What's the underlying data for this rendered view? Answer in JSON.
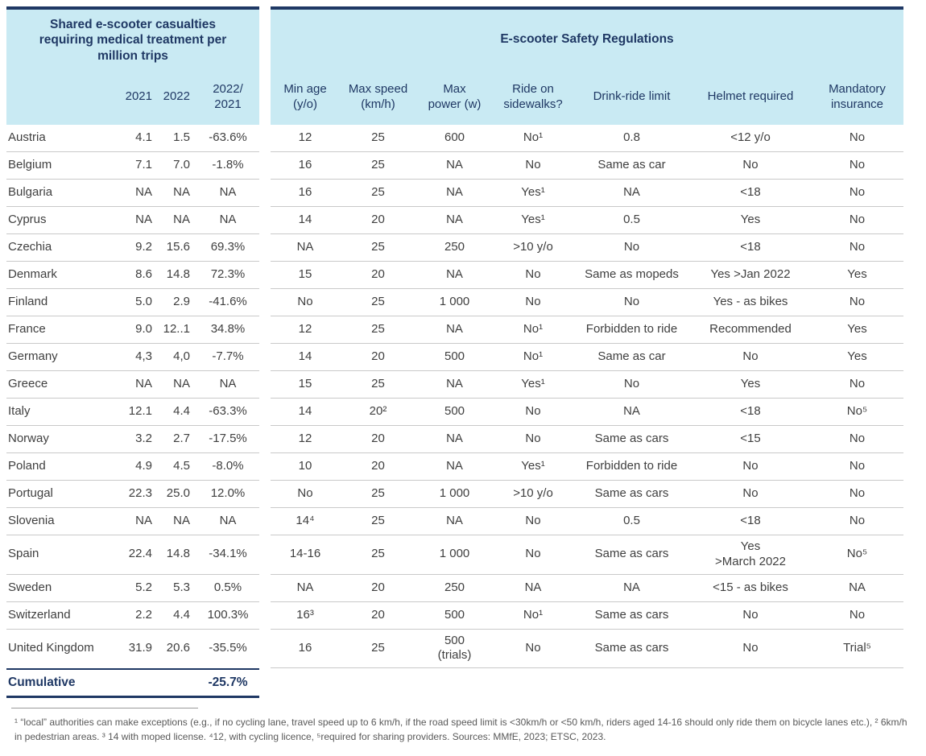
{
  "left_table": {
    "title": "Shared e-scooter casualties\nrequiring medical treatment per\nmillion trips",
    "columns": [
      "2021",
      "2022",
      "2022/\n2021"
    ],
    "cumulative": {
      "label": "Cumulative",
      "change": "-25.7%"
    }
  },
  "right_table": {
    "title": "E-scooter Safety Regulations",
    "columns": [
      "Min age\n(y/o)",
      "Max speed\n(km/h)",
      "Max\npower (w)",
      "Ride on\nsidewalks?",
      "Drink-ride limit",
      "Helmet required",
      "Mandatory\ninsurance"
    ]
  },
  "rows": [
    {
      "country": "Austria",
      "y2021": "4.1",
      "y2022": "1.5",
      "change": "-63.6%",
      "min_age": "12",
      "max_speed": "25",
      "max_power": "600",
      "sidewalks": "No¹",
      "drink_limit": "0.8",
      "helmet": "<12 y/o",
      "insurance": "No"
    },
    {
      "country": "Belgium",
      "y2021": "7.1",
      "y2022": "7.0",
      "change": "-1.8%",
      "min_age": "16",
      "max_speed": "25",
      "max_power": "NA",
      "sidewalks": "No",
      "drink_limit": "Same as car",
      "helmet": "No",
      "insurance": "No"
    },
    {
      "country": "Bulgaria",
      "y2021": "NA",
      "y2022": "NA",
      "change": "NA",
      "min_age": "16",
      "max_speed": "25",
      "max_power": "NA",
      "sidewalks": "Yes¹",
      "drink_limit": "NA",
      "helmet": "<18",
      "insurance": "No"
    },
    {
      "country": "Cyprus",
      "y2021": "NA",
      "y2022": "NA",
      "change": "NA",
      "min_age": "14",
      "max_speed": "20",
      "max_power": "NA",
      "sidewalks": "Yes¹",
      "drink_limit": "0.5",
      "helmet": "Yes",
      "insurance": "No"
    },
    {
      "country": "Czechia",
      "y2021": "9.2",
      "y2022": "15.6",
      "change": "69.3%",
      "min_age": "NA",
      "max_speed": "25",
      "max_power": "250",
      "sidewalks": ">10 y/o",
      "drink_limit": "No",
      "helmet": "<18",
      "insurance": "No"
    },
    {
      "country": "Denmark",
      "y2021": "8.6",
      "y2022": "14.8",
      "change": "72.3%",
      "min_age": "15",
      "max_speed": "20",
      "max_power": "NA",
      "sidewalks": "No",
      "drink_limit": "Same as mopeds",
      "helmet": "Yes  >Jan 2022",
      "insurance": "Yes"
    },
    {
      "country": "Finland",
      "y2021": "5.0",
      "y2022": "2.9",
      "change": "-41.6%",
      "min_age": "No",
      "max_speed": "25",
      "max_power": "1 000",
      "sidewalks": "No",
      "drink_limit": "No",
      "helmet": "Yes - as bikes",
      "insurance": "No"
    },
    {
      "country": "France",
      "y2021": "9.0",
      "y2022": "12..1",
      "change": "34.8%",
      "min_age": "12",
      "max_speed": "25",
      "max_power": "NA",
      "sidewalks": "No¹",
      "drink_limit": "Forbidden to ride",
      "helmet": "Recommended",
      "insurance": "Yes"
    },
    {
      "country": "Germany",
      "y2021": "4,3",
      "y2022": "4,0",
      "change": "-7.7%",
      "min_age": "14",
      "max_speed": "20",
      "max_power": "500",
      "sidewalks": "No¹",
      "drink_limit": "Same as car",
      "helmet": "No",
      "insurance": "Yes"
    },
    {
      "country": "Greece",
      "y2021": "NA",
      "y2022": "NA",
      "change": "NA",
      "min_age": "15",
      "max_speed": "25",
      "max_power": "NA",
      "sidewalks": "Yes¹",
      "drink_limit": "No",
      "helmet": "Yes",
      "insurance": "No"
    },
    {
      "country": "Italy",
      "y2021": "12.1",
      "y2022": "4.4",
      "change": "-63.3%",
      "min_age": "14",
      "max_speed": "20²",
      "max_power": "500",
      "sidewalks": "No",
      "drink_limit": "NA",
      "helmet": "<18",
      "insurance": "No⁵"
    },
    {
      "country": "Norway",
      "y2021": "3.2",
      "y2022": "2.7",
      "change": "-17.5%",
      "min_age": "12",
      "max_speed": "20",
      "max_power": "NA",
      "sidewalks": "No",
      "drink_limit": "Same as cars",
      "helmet": "<15",
      "insurance": "No"
    },
    {
      "country": "Poland",
      "y2021": "4.9",
      "y2022": "4.5",
      "change": "-8.0%",
      "min_age": "10",
      "max_speed": "20",
      "max_power": "NA",
      "sidewalks": "Yes¹",
      "drink_limit": "Forbidden to ride",
      "helmet": "No",
      "insurance": "No"
    },
    {
      "country": "Portugal",
      "y2021": "22.3",
      "y2022": "25.0",
      "change": "12.0%",
      "min_age": "No",
      "max_speed": "25",
      "max_power": "1 000",
      "sidewalks": ">10 y/o",
      "drink_limit": "Same as cars",
      "helmet": "No",
      "insurance": "No"
    },
    {
      "country": "Slovenia",
      "y2021": "NA",
      "y2022": "NA",
      "change": "NA",
      "min_age": "14⁴",
      "max_speed": "25",
      "max_power": "NA",
      "sidewalks": "No",
      "drink_limit": "0.5",
      "helmet": "<18",
      "insurance": "No"
    },
    {
      "country": "Spain",
      "y2021": "22.4",
      "y2022": "14.8",
      "change": "-34.1%",
      "min_age": "14-16",
      "max_speed": "25",
      "max_power": "1 000",
      "sidewalks": "No",
      "drink_limit": "Same as cars",
      "helmet": "Yes\n>March 2022",
      "insurance": "No⁵"
    },
    {
      "country": "Sweden",
      "y2021": "5.2",
      "y2022": "5.3",
      "change": "0.5%",
      "min_age": "NA",
      "max_speed": "20",
      "max_power": "250",
      "sidewalks": "NA",
      "drink_limit": "NA",
      "helmet": "<15 - as bikes",
      "insurance": "NA"
    },
    {
      "country": "Switzerland",
      "y2021": "2.2",
      "y2022": "4.4",
      "change": "100.3%",
      "min_age": "16³",
      "max_speed": "20",
      "max_power": "500",
      "sidewalks": "No¹",
      "drink_limit": "Same as cars",
      "helmet": "No",
      "insurance": "No"
    },
    {
      "country": "United Kingdom",
      "y2021": "31.9",
      "y2022": "20.6",
      "change": "-35.5%",
      "min_age": "16",
      "max_speed": "25",
      "max_power": "500\n(trials)",
      "sidewalks": "No",
      "drink_limit": "Same as cars",
      "helmet": "No",
      "insurance": "Trial⁵"
    }
  ],
  "footnote": "¹ “local” authorities can make exceptions (e.g., if no cycling lane, travel speed up to 6 km/h, if the road speed limit is <30km/h or <50 km/h, riders aged 14-16 should only ride them on bicycle lanes etc.),  ² 6km/h in pedestrian areas. ³ 14 with moped license. ⁴12, with cycling licence, ⁵required for sharing providers. Sources: MMfE, 2023; ETSC, 2023.",
  "colors": {
    "navy": "#1f3864",
    "header_blue": "#c9eaf3",
    "body_text": "#3f3f3f",
    "row_separator": "#c9c9c9",
    "footnote_gray": "#595959"
  }
}
